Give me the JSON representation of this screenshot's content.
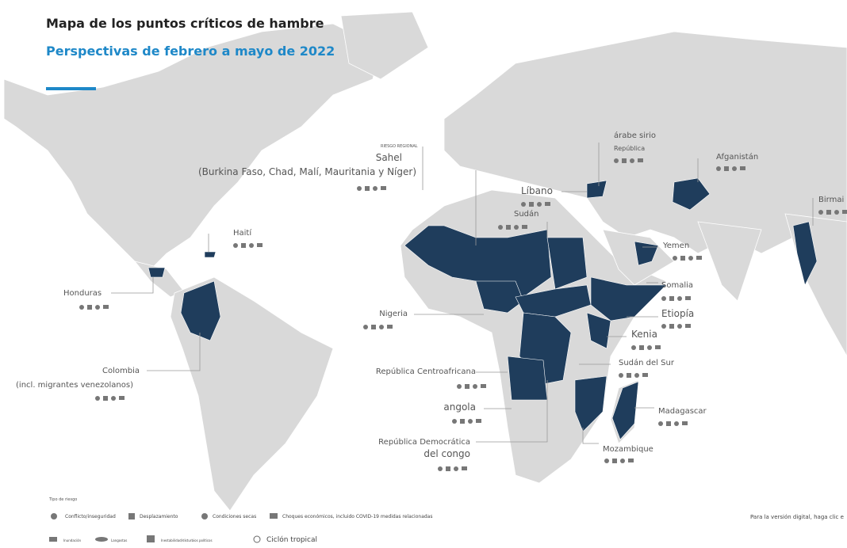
{
  "header": {
    "title": "Mapa de los puntos críticos de hambre",
    "subtitle": "Perspectivas de febrero a mayo de 2022"
  },
  "regional": {
    "tag": "RIESGO REGIONAL",
    "name": "Sahel",
    "countries": "(Burkina Faso, Chad, Malí, Mauritania y Níger)"
  },
  "hotspots": [
    {
      "label": "Haití"
    },
    {
      "label": "Honduras"
    },
    {
      "label": "Colombia",
      "note": "(incl. migrantes venezolanos)"
    },
    {
      "label": "Nigeria"
    },
    {
      "label": "República Centroafricana"
    },
    {
      "label": "angola"
    },
    {
      "label": "República Democrática",
      "note": "del congo"
    },
    {
      "label": "Líbano"
    },
    {
      "label": "Sudán"
    },
    {
      "label": "árabe sirio",
      "note": "República"
    },
    {
      "label": "Afganistán"
    },
    {
      "label": "Birmai"
    },
    {
      "label": "Yemen"
    },
    {
      "label": "Somalia"
    },
    {
      "label": "Etiopía"
    },
    {
      "label": "Kenia"
    },
    {
      "label": "Sudán del Sur"
    },
    {
      "label": "Madagascar"
    },
    {
      "label": "Mozambique"
    }
  ],
  "legend": {
    "title": "Tipo de riesgo",
    "items": [
      "Conflicto/inseguridad",
      "Desplazamiento",
      "Condiciones secas",
      "Choques económicos, incluido COVID-19 medidas relacionadas",
      "Inundación",
      "Langostas",
      "Inestabilidad/disturbios políticos",
      "Ciclón tropical"
    ]
  },
  "footer": "Para la versión digital, haga clic e"
}
